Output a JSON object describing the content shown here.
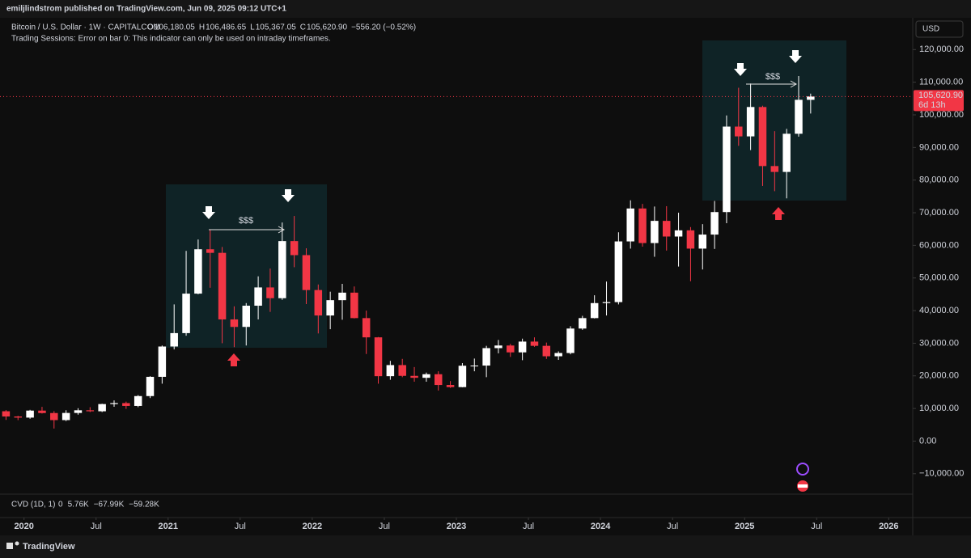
{
  "chart_data": {
    "type": "candlestick",
    "publisher": "emiljlindstrom published on TradingView.com, Jun 09, 2025 09:12 UTC+1",
    "title": "Bitcoin / U.S. Dollar · 1W · CAPITALCOM",
    "ohlc_header": [
      {
        "key": "O",
        "value": "106,180.05"
      },
      {
        "key": "H",
        "value": "106,486.65"
      },
      {
        "key": "L",
        "value": "105,367.05"
      },
      {
        "key": "C",
        "value": "105,620.90"
      }
    ],
    "change": "−556.20 (−0.52%)",
    "error_note": "Trading Sessions: Error on bar 0: This indicator can only be used on intraday timeframes.",
    "currency": "USD",
    "last_price": {
      "value": 105620.9,
      "label": "105,620.90"
    },
    "countdown": "6d 13h",
    "indicator": {
      "name": "CVD (1D, 1)",
      "values": [
        "0",
        "5.76K",
        "−67.99K",
        "−59.28K"
      ]
    },
    "annotations": [
      "$$$",
      "$$$"
    ],
    "brand": "TradingView",
    "up_color": "#ffffff",
    "down_color": "#f23645",
    "grid": false,
    "x": [
      "2019-11",
      "2019-12",
      "2020-01",
      "2020-02",
      "2020-03",
      "2020-04",
      "2020-05",
      "2020-06",
      "2020-07",
      "2020-08",
      "2020-09",
      "2020-10",
      "2020-11",
      "2020-12",
      "2021-01",
      "2021-02",
      "2021-03",
      "2021-04",
      "2021-05",
      "2021-06",
      "2021-07",
      "2021-08",
      "2021-09",
      "2021-10",
      "2021-11",
      "2021-12",
      "2022-01",
      "2022-02",
      "2022-03",
      "2022-04",
      "2022-05",
      "2022-06",
      "2022-07",
      "2022-08",
      "2022-09",
      "2022-10",
      "2022-11",
      "2022-12",
      "2023-01",
      "2023-02",
      "2023-03",
      "2023-04",
      "2023-05",
      "2023-06",
      "2023-07",
      "2023-08",
      "2023-09",
      "2023-10",
      "2023-11",
      "2023-12",
      "2024-01",
      "2024-02",
      "2024-03",
      "2024-04",
      "2024-05",
      "2024-06",
      "2024-07",
      "2024-08",
      "2024-09",
      "2024-10",
      "2024-11",
      "2024-12",
      "2025-01",
      "2025-02",
      "2025-03",
      "2025-04",
      "2025-05",
      "2025-06"
    ],
    "open": [
      9150,
      7550,
      7200,
      9350,
      8600,
      6440,
      8630,
      9450,
      9140,
      11350,
      11650,
      10780,
      13800,
      19700,
      28990,
      33100,
      45200,
      58800,
      57700,
      37300,
      35000,
      41500,
      47100,
      43800,
      61300,
      57000,
      46300,
      38500,
      43200,
      45500,
      37700,
      31800,
      19900,
      23300,
      20000,
      19400,
      20500,
      17200,
      16550,
      23100,
      23150,
      28500,
      29300,
      27200,
      30500,
      29200,
      26000,
      27000,
      34500,
      37700,
      42300,
      42600,
      61200,
      71300,
      60700,
      67500,
      62700,
      64600,
      59000,
      63300,
      70200,
      96400,
      93400,
      102400,
      84300,
      82500,
      94200,
      104600
    ],
    "high": [
      9500,
      7750,
      9580,
      10500,
      9180,
      9460,
      10080,
      10400,
      11450,
      12470,
      12100,
      14100,
      19900,
      29300,
      41900,
      58300,
      61800,
      64900,
      59500,
      41300,
      42300,
      50500,
      52900,
      67000,
      69000,
      59100,
      48000,
      45800,
      48200,
      47400,
      40000,
      31900,
      24600,
      25200,
      22700,
      21000,
      21400,
      18400,
      23900,
      25300,
      29200,
      31000,
      29800,
      31400,
      31800,
      30200,
      27500,
      35200,
      38400,
      44700,
      48900,
      64000,
      73800,
      72700,
      71900,
      72000,
      70000,
      65600,
      66500,
      73600,
      99800,
      108300,
      109600,
      102800,
      95000,
      95700,
      111900,
      106500
    ],
    "low": [
      6500,
      6430,
      6850,
      8450,
      3850,
      6150,
      8100,
      8900,
      8900,
      10530,
      9880,
      10400,
      13200,
      17600,
      28100,
      32300,
      45000,
      47000,
      30000,
      28800,
      29300,
      37300,
      39600,
      43300,
      53300,
      42000,
      33000,
      34300,
      37200,
      37600,
      26700,
      17600,
      18800,
      19600,
      18200,
      18200,
      15500,
      16300,
      16500,
      21400,
      19600,
      26900,
      25800,
      24800,
      28900,
      25200,
      24900,
      26600,
      34100,
      37600,
      38500,
      41900,
      59000,
      59600,
      56500,
      58400,
      53500,
      49000,
      52600,
      58900,
      66800,
      90500,
      89200,
      78200,
      76600,
      74400,
      93300,
      100400
    ],
    "close": [
      7550,
      7200,
      9350,
      8600,
      6440,
      8630,
      9450,
      9140,
      11350,
      11650,
      10780,
      13800,
      19700,
      28990,
      33100,
      45200,
      58800,
      57700,
      37300,
      35000,
      41500,
      47100,
      43800,
      61300,
      57000,
      46300,
      38500,
      43200,
      45500,
      37700,
      31800,
      19900,
      23300,
      20000,
      19400,
      20500,
      17200,
      16550,
      23100,
      23150,
      28500,
      29300,
      27200,
      30500,
      29200,
      26000,
      27000,
      34500,
      37700,
      42300,
      42600,
      61200,
      71300,
      60700,
      67500,
      62700,
      64600,
      59000,
      63300,
      70200,
      96400,
      93400,
      102400,
      84300,
      82500,
      94200,
      104600,
      105620.9
    ],
    "xlim": [
      "2019-11",
      "2026-03"
    ],
    "xticks": [
      {
        "value": "2020-01",
        "label": "2020"
      },
      {
        "value": "2020-07",
        "label": "Jul"
      },
      {
        "value": "2021-01",
        "label": "2021"
      },
      {
        "value": "2021-07",
        "label": "Jul"
      },
      {
        "value": "2022-01",
        "label": "2022"
      },
      {
        "value": "2022-07",
        "label": "Jul"
      },
      {
        "value": "2023-01",
        "label": "2023"
      },
      {
        "value": "2023-07",
        "label": "Jul"
      },
      {
        "value": "2024-01",
        "label": "2024"
      },
      {
        "value": "2024-07",
        "label": "Jul"
      },
      {
        "value": "2025-01",
        "label": "2025"
      },
      {
        "value": "2025-07",
        "label": "Jul"
      },
      {
        "value": "2026-01",
        "label": "2026"
      }
    ],
    "ylim": [
      -16000,
      129000
    ],
    "yticks": [
      {
        "value": -10000,
        "label": "−10,000.00"
      },
      {
        "value": 0,
        "label": "0.00"
      },
      {
        "value": 10000,
        "label": "10,000.00"
      },
      {
        "value": 20000,
        "label": "20,000.00"
      },
      {
        "value": 30000,
        "label": "30,000.00"
      },
      {
        "value": 40000,
        "label": "40,000.00"
      },
      {
        "value": 50000,
        "label": "50,000.00"
      },
      {
        "value": 60000,
        "label": "60,000.00"
      },
      {
        "value": 70000,
        "label": "70,000.00"
      },
      {
        "value": 80000,
        "label": "80,000.00"
      },
      {
        "value": 90000,
        "label": "90,000.00"
      },
      {
        "value": 100000,
        "label": "100,000.00"
      },
      {
        "value": 110000,
        "label": "110,000.00"
      },
      {
        "value": 120000,
        "label": "120,000.00"
      }
    ]
  }
}
